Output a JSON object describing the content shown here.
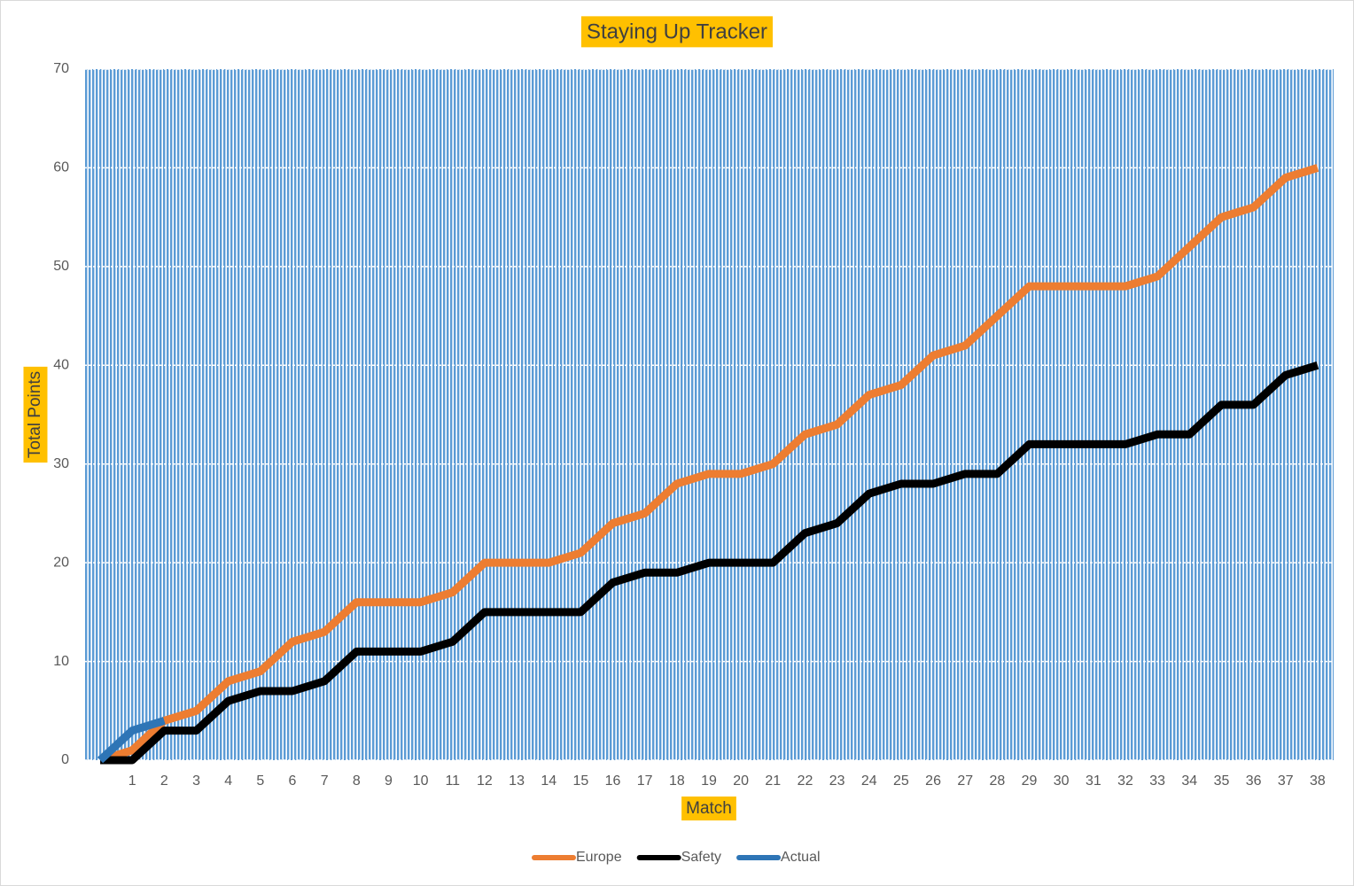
{
  "chart_data": {
    "type": "line",
    "title": "Staying Up Tracker",
    "x_label": "Match",
    "y_label": "Total Points",
    "categories": [
      null,
      "1",
      "2",
      "3",
      "4",
      "5",
      "6",
      "7",
      "8",
      "9",
      "10",
      "11",
      "12",
      "13",
      "14",
      "15",
      "16",
      "17",
      "18",
      "19",
      "20",
      "21",
      "22",
      "23",
      "24",
      "25",
      "26",
      "27",
      "28",
      "29",
      "30",
      "31",
      "32",
      "33",
      "34",
      "35",
      "36",
      "37",
      "38"
    ],
    "series": [
      {
        "name": "Europe",
        "color": "#ed7d31",
        "values": [
          0,
          1,
          4,
          5,
          8,
          9,
          12,
          13,
          16,
          16,
          16,
          17,
          20,
          20,
          20,
          21,
          24,
          25,
          28,
          29,
          29,
          30,
          33,
          34,
          37,
          38,
          41,
          42,
          45,
          48,
          48,
          48,
          48,
          49,
          52,
          55,
          56,
          59,
          60
        ]
      },
      {
        "name": "Safety",
        "color": "#000000",
        "values": [
          0,
          0,
          3,
          3,
          6,
          7,
          7,
          8,
          11,
          11,
          11,
          12,
          15,
          15,
          15,
          15,
          18,
          19,
          19,
          20,
          20,
          20,
          23,
          24,
          27,
          28,
          28,
          29,
          29,
          32,
          32,
          32,
          32,
          33,
          33,
          36,
          36,
          39,
          40
        ]
      },
      {
        "name": "Actual",
        "color": "#2e75b6",
        "values": [
          0,
          3,
          4,
          null,
          null,
          null,
          null,
          null,
          null,
          null,
          null,
          null,
          null,
          null,
          null,
          null,
          null,
          null,
          null,
          null,
          null,
          null,
          null,
          null,
          null,
          null,
          null,
          null,
          null,
          null,
          null,
          null,
          null,
          null,
          null,
          null,
          null,
          null,
          null
        ]
      }
    ],
    "ylim": [
      0,
      70
    ],
    "yticks": [
      0,
      10,
      20,
      30,
      40,
      50,
      60,
      70
    ],
    "grid": true,
    "legend": "bottom"
  }
}
